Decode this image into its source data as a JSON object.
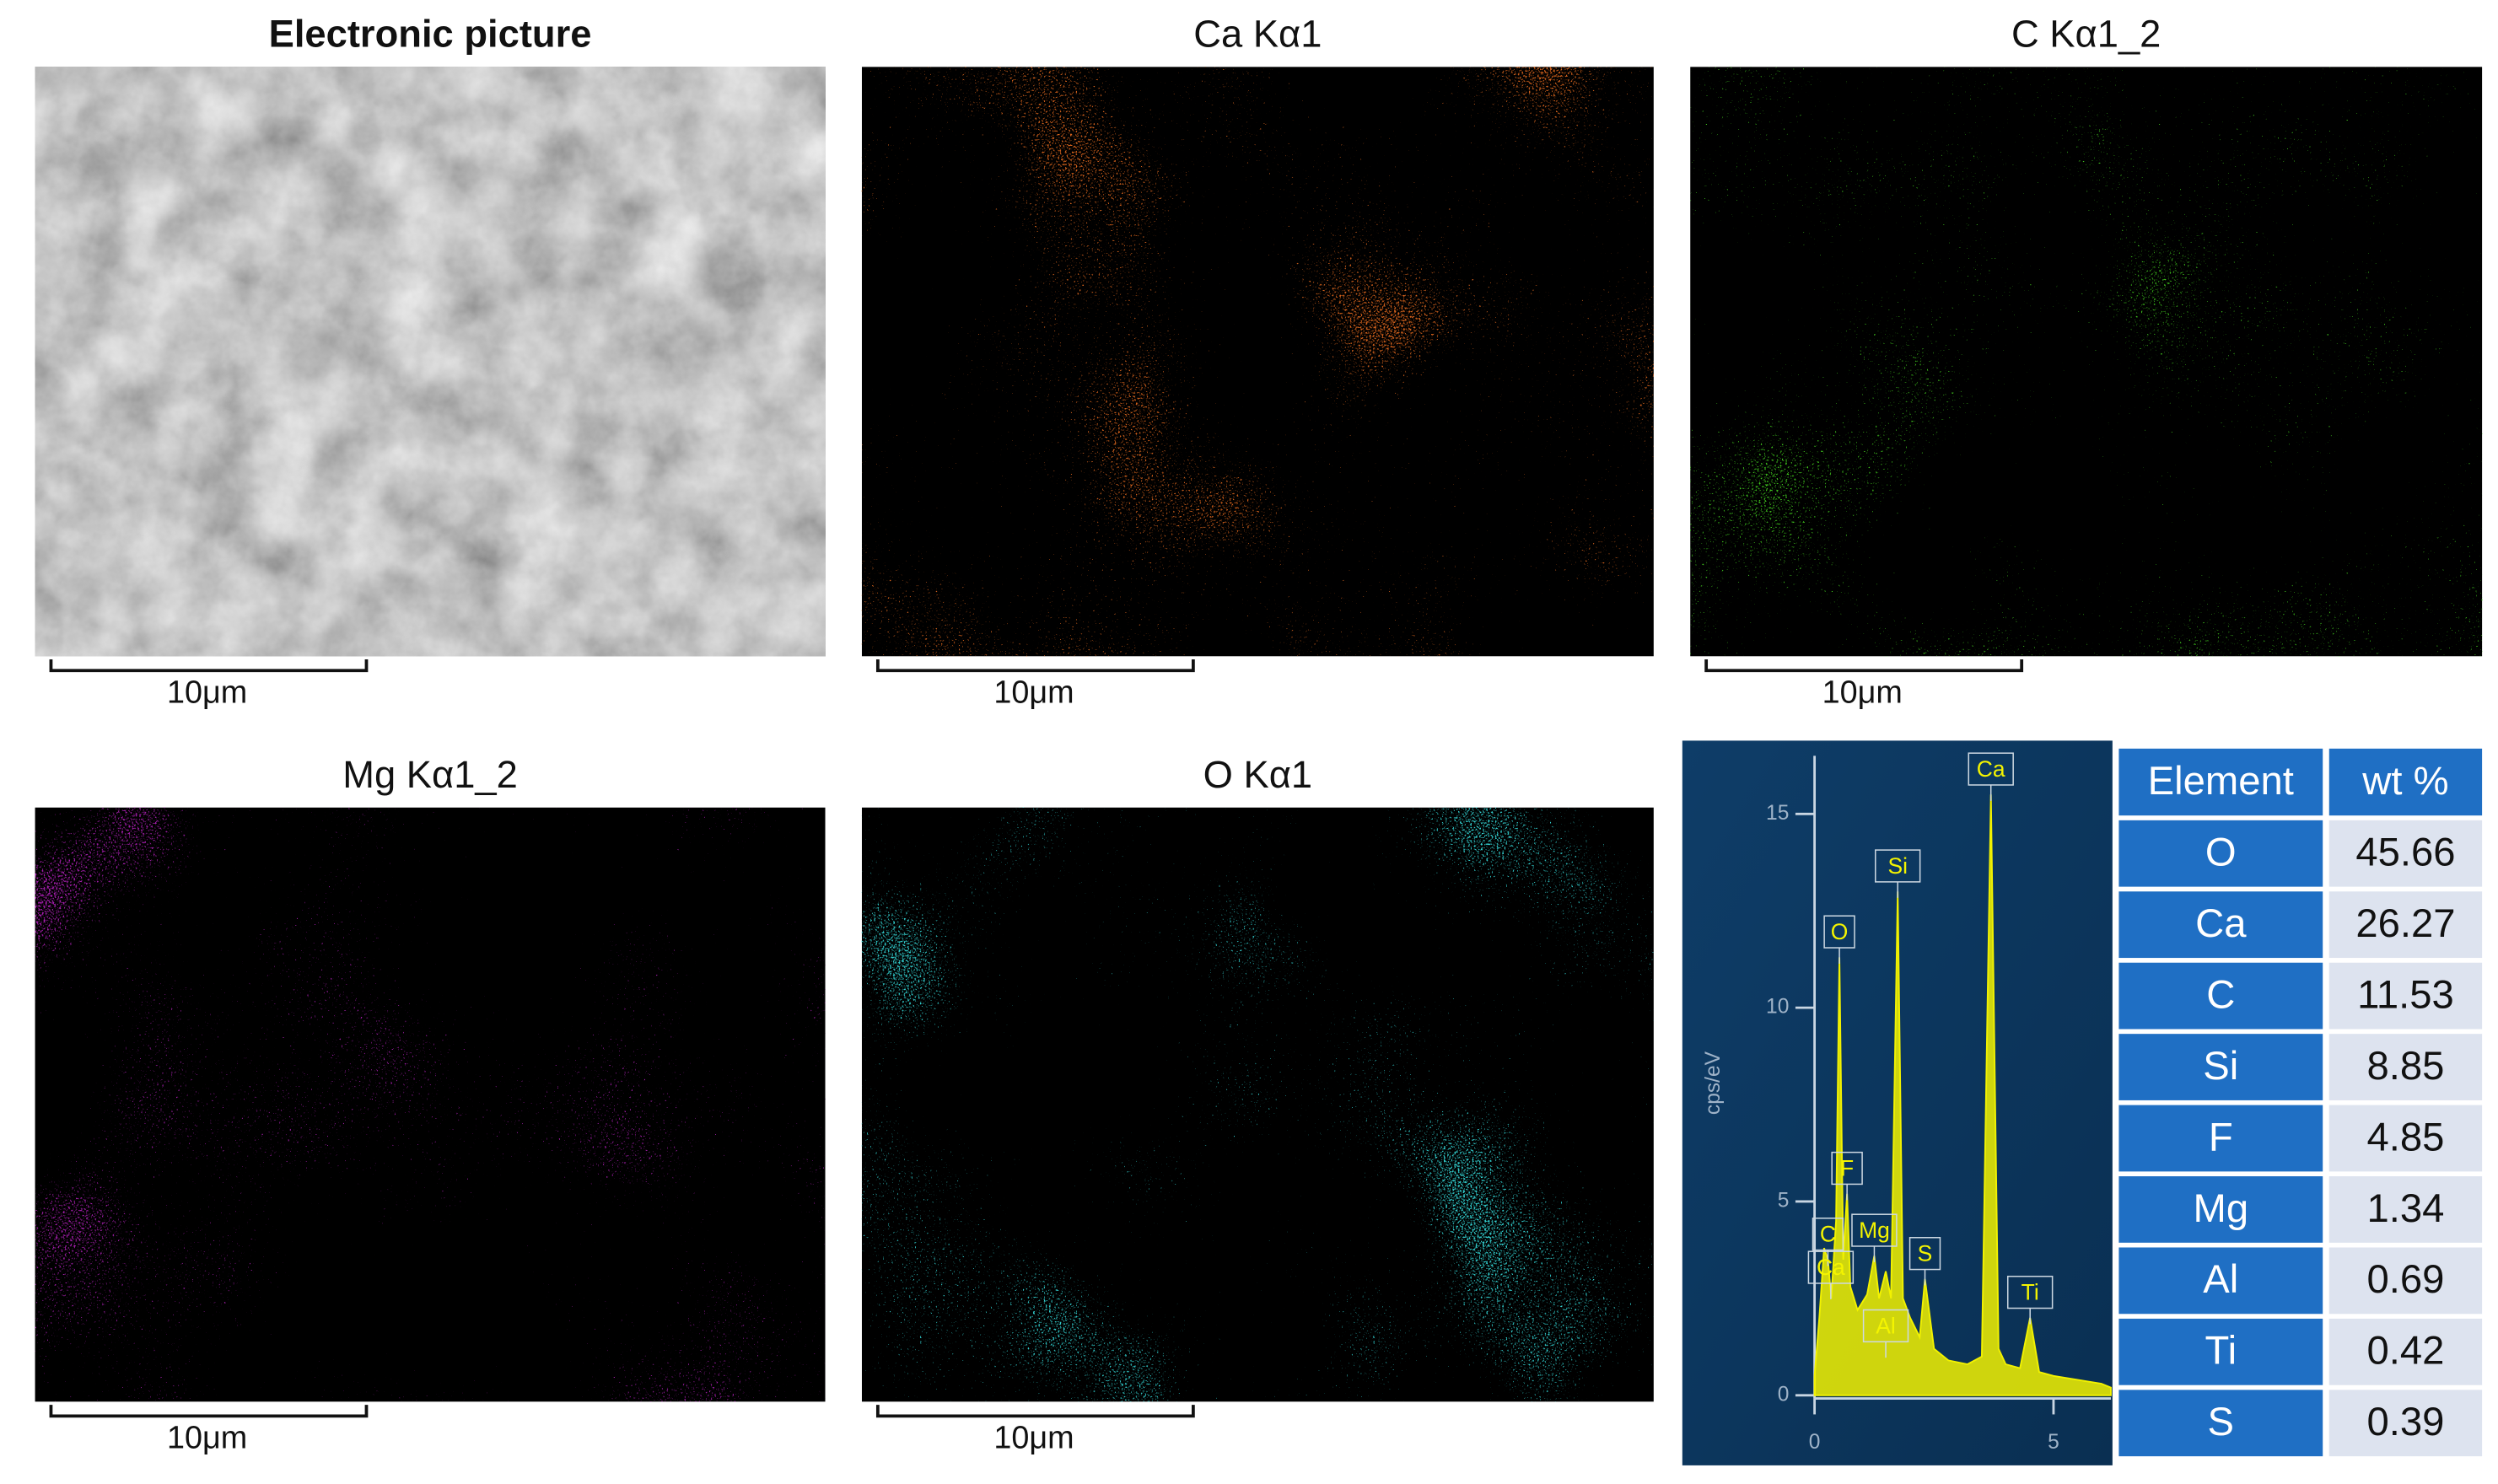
{
  "panels": [
    {
      "title": "Electronic picture",
      "scale_bar": "10μm"
    },
    {
      "title": "Ca Kα1",
      "color": "#d4621c",
      "scale_bar": "10μm"
    },
    {
      "title": "C Kα1_2",
      "color": "#3fc61f",
      "scale_bar": "10μm"
    },
    {
      "title": "Mg Kα1_2",
      "color": "#a41fac",
      "scale_bar": "10μm"
    },
    {
      "title": "O Kα1",
      "color": "#30cccc",
      "scale_bar": "10μm"
    }
  ],
  "chart_data": {
    "type": "line",
    "ylabel": "cps/eV",
    "color": "#f2f200",
    "xlim": [
      0,
      6.2
    ],
    "ylim": [
      0,
      16.5
    ],
    "xticks": [
      0,
      5
    ],
    "yticks": [
      0,
      5,
      10,
      15
    ],
    "x": [
      0,
      0.1,
      0.2,
      0.28,
      0.35,
      0.45,
      0.52,
      0.6,
      0.68,
      0.75,
      0.9,
      1.1,
      1.25,
      1.35,
      1.49,
      1.6,
      1.74,
      1.85,
      2.0,
      2.2,
      2.31,
      2.5,
      2.8,
      3.2,
      3.5,
      3.69,
      3.85,
      4.0,
      4.3,
      4.51,
      4.7,
      5.0,
      5.5,
      6.0,
      6.2
    ],
    "values": [
      0.5,
      2,
      3.8,
      3.5,
      2.5,
      4.5,
      11.3,
      3.5,
      5.2,
      2.8,
      2.2,
      2.6,
      3.6,
      2.5,
      3.2,
      2.5,
      13,
      2.5,
      2,
      1.5,
      3,
      1.2,
      0.9,
      0.8,
      1,
      15.5,
      1.2,
      0.8,
      0.7,
      2,
      0.6,
      0.5,
      0.4,
      0.3,
      0.2
    ],
    "peak_labels": [
      {
        "label": "Ca",
        "x": 3.69
      },
      {
        "label": "Si",
        "x": 1.74
      },
      {
        "label": "O",
        "x": 0.52
      },
      {
        "label": "F",
        "x": 0.68
      },
      {
        "label": "C",
        "x": 0.28
      },
      {
        "label": "Mg",
        "x": 1.25
      },
      {
        "label": "Al",
        "x": 1.49
      },
      {
        "label": "S",
        "x": 2.31
      },
      {
        "label": "Ca",
        "x": 0.34
      },
      {
        "label": "Ti",
        "x": 4.51
      }
    ]
  },
  "table": {
    "header": [
      "Element",
      "wt %"
    ],
    "rows": [
      [
        "O",
        "45.66"
      ],
      [
        "Ca",
        "26.27"
      ],
      [
        "C",
        "11.53"
      ],
      [
        "Si",
        "8.85"
      ],
      [
        "F",
        "4.85"
      ],
      [
        "Mg",
        "1.34"
      ],
      [
        "Al",
        "0.69"
      ],
      [
        "Ti",
        "0.42"
      ],
      [
        "S",
        "0.39"
      ]
    ]
  }
}
